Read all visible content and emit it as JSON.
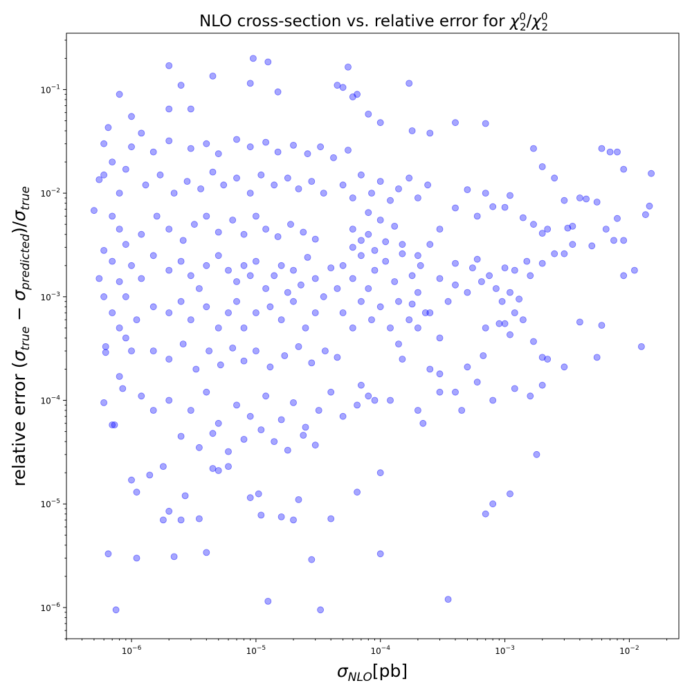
{
  "chart_data": {
    "type": "scatter",
    "title_prefix": "NLO cross-section vs. relative error for ",
    "title_math_base": "χ",
    "title_math_sub": "2",
    "title_math_sup": "0",
    "title_math_sep": "/",
    "xlabel_symbol": "σ",
    "xlabel_sub": "NLO",
    "xlabel_unit": "[pb]",
    "ylabel_prefix": "relative error (",
    "ylabel_sigma": "σ",
    "ylabel_sub_true": "true",
    "ylabel_minus": " − ",
    "ylabel_sub_pred": "predicted",
    "ylabel_close": ")/",
    "x_scale": "log",
    "y_scale": "log",
    "xlim": [
      3e-07,
      0.025
    ],
    "ylim": [
      5e-07,
      0.35
    ],
    "x_ticks": [
      {
        "base": "10",
        "exp": "−6",
        "value": 1e-06
      },
      {
        "base": "10",
        "exp": "−5",
        "value": 1e-05
      },
      {
        "base": "10",
        "exp": "−4",
        "value": 0.0001
      },
      {
        "base": "10",
        "exp": "−3",
        "value": 0.001
      },
      {
        "base": "10",
        "exp": "−2",
        "value": 0.01
      }
    ],
    "y_ticks": [
      {
        "base": "10",
        "exp": "−6",
        "value": 1e-06
      },
      {
        "base": "10",
        "exp": "−5",
        "value": 1e-05
      },
      {
        "base": "10",
        "exp": "−4",
        "value": 0.0001
      },
      {
        "base": "10",
        "exp": "−3",
        "value": 0.001
      },
      {
        "base": "10",
        "exp": "−2",
        "value": 0.01
      },
      {
        "base": "10",
        "exp": "−1",
        "value": 0.1
      }
    ],
    "grid": false,
    "legend": "none",
    "marker_color": "#0000ff",
    "marker_alpha": 0.35,
    "points": [
      [
        2e-06,
        0.17
      ],
      [
        9.5e-06,
        0.2
      ],
      [
        1.25e-05,
        0.185
      ],
      [
        5.5e-05,
        0.165
      ],
      [
        0.00017,
        0.115
      ],
      [
        4.5e-06,
        0.135
      ],
      [
        2.5e-06,
        0.11
      ],
      [
        9e-06,
        0.115
      ],
      [
        1.5e-05,
        0.095
      ],
      [
        4.5e-05,
        0.11
      ],
      [
        5e-05,
        0.105
      ],
      [
        6e-05,
        0.085
      ],
      [
        6.5e-05,
        0.09
      ],
      [
        8e-07,
        0.09
      ],
      [
        3e-06,
        0.065
      ],
      [
        2e-06,
        0.065
      ],
      [
        6.5e-07,
        0.043
      ],
      [
        1e-06,
        0.055
      ],
      [
        1.2e-06,
        0.038
      ],
      [
        8e-05,
        0.058
      ],
      [
        0.0001,
        0.048
      ],
      [
        0.00025,
        0.038
      ],
      [
        0.0004,
        0.048
      ],
      [
        0.0007,
        0.047
      ],
      [
        0.00018,
        0.04
      ],
      [
        0.0017,
        0.027
      ],
      [
        0.002,
        0.018
      ],
      [
        0.0025,
        0.014
      ],
      [
        0.003,
        0.0085
      ],
      [
        0.006,
        0.027
      ],
      [
        0.007,
        0.025
      ],
      [
        0.008,
        0.025
      ],
      [
        0.009,
        0.017
      ],
      [
        0.015,
        0.0155
      ],
      [
        0.0145,
        0.0075
      ],
      [
        0.0135,
        0.0062
      ],
      [
        0.0065,
        0.0045
      ],
      [
        0.008,
        0.0057
      ],
      [
        0.0075,
        0.0035
      ],
      [
        0.009,
        0.0035
      ],
      [
        0.011,
        0.0018
      ],
      [
        0.009,
        0.0016
      ],
      [
        0.0125,
        0.00033
      ],
      [
        0.0055,
        0.00026
      ],
      [
        0.006,
        0.00053
      ],
      [
        0.004,
        0.00057
      ],
      [
        0.003,
        0.00021
      ],
      [
        0.002,
        0.00026
      ],
      [
        0.0022,
        0.00025
      ],
      [
        0.002,
        0.00014
      ],
      [
        0.0017,
        0.00037
      ],
      [
        0.0018,
        3e-05
      ],
      [
        0.0016,
        0.00011
      ],
      [
        0.0012,
        0.00013
      ],
      [
        0.0011,
        0.00043
      ],
      [
        0.0008,
        0.0001
      ],
      [
        0.0011,
        1.25e-05
      ],
      [
        0.0007,
        8e-06
      ],
      [
        0.0008,
        1e-05
      ],
      [
        0.00035,
        1.2e-06
      ],
      [
        0.0001,
        3.3e-06
      ],
      [
        0.0001,
        2e-05
      ],
      [
        6.5e-05,
        1.3e-05
      ],
      [
        4e-05,
        7.2e-06
      ],
      [
        1.25e-05,
        1.15e-06
      ],
      [
        3.3e-05,
        9.5e-07
      ],
      [
        7.5e-07,
        9.5e-07
      ],
      [
        6.5e-07,
        3.3e-06
      ],
      [
        1.1e-06,
        3e-06
      ],
      [
        2.2e-06,
        3.1e-06
      ],
      [
        4e-06,
        3.4e-06
      ],
      [
        2.8e-05,
        2.9e-06
      ],
      [
        1.8e-06,
        7e-06
      ],
      [
        2.5e-06,
        7e-06
      ],
      [
        3.5e-06,
        7.2e-06
      ],
      [
        1.1e-05,
        7.8e-06
      ],
      [
        1.6e-05,
        7.5e-06
      ],
      [
        2e-05,
        7e-06
      ],
      [
        2.2e-05,
        1.1e-05
      ],
      [
        9e-06,
        1.15e-05
      ],
      [
        1.05e-05,
        1.25e-05
      ],
      [
        2e-06,
        8.5e-06
      ],
      [
        2.7e-06,
        1.2e-05
      ],
      [
        1e-06,
        1.7e-05
      ],
      [
        1.1e-06,
        1.3e-05
      ],
      [
        1.4e-06,
        1.9e-05
      ],
      [
        1.8e-06,
        2.3e-05
      ],
      [
        4.5e-06,
        2.2e-05
      ],
      [
        5e-06,
        2.1e-05
      ],
      [
        6e-06,
        2.3e-05
      ],
      [
        5e-07,
        0.0068
      ],
      [
        5.5e-07,
        0.0135
      ],
      [
        6e-07,
        0.03
      ],
      [
        6e-07,
        0.0028
      ],
      [
        5.5e-07,
        0.0015
      ],
      [
        6e-07,
        0.001
      ],
      [
        6.2e-07,
        0.00033
      ],
      [
        6.2e-07,
        0.00029
      ],
      [
        6e-07,
        9.5e-05
      ],
      [
        7e-07,
        5.8e-05
      ],
      [
        7.3e-07,
        5.8e-05
      ],
      [
        8e-07,
        0.00017
      ],
      [
        8.5e-07,
        0.00013
      ],
      [
        1.2e-06,
        0.00011
      ],
      [
        1.5e-06,
        8e-05
      ],
      [
        0.00025,
        0.0002
      ],
      [
        0.0003,
        0.00018
      ],
      [
        0.0004,
        0.00012
      ],
      [
        0.00045,
        8e-05
      ],
      [
        0.0005,
        0.00021
      ],
      [
        0.0006,
        0.00015
      ],
      [
        0.0002,
        8e-05
      ],
      [
        0.00022,
        6e-05
      ],
      [
        0.0003,
        0.00012
      ],
      [
        0.00012,
        0.0001
      ],
      [
        9e-05,
        0.0001
      ],
      [
        7e-05,
        0.00014
      ],
      [
        0.00015,
        0.00025
      ],
      [
        0.00014,
        0.00035
      ],
      [
        0.0003,
        0.0004
      ],
      [
        0.00067,
        0.00027
      ],
      [
        0.0007,
        0.0005
      ],
      [
        0.0009,
        0.00055
      ],
      [
        0.001,
        0.00055
      ],
      [
        0.0012,
        0.0007
      ],
      [
        0.0013,
        0.00095
      ],
      [
        0.0014,
        0.0006
      ],
      [
        0.0016,
        0.0016
      ],
      [
        0.0012,
        0.0018
      ],
      [
        0.0015,
        0.0022
      ],
      [
        0.001,
        0.0019
      ],
      [
        0.002,
        0.0021
      ],
      [
        0.0025,
        0.0026
      ],
      [
        0.003,
        0.0026
      ],
      [
        0.0035,
        0.0032
      ],
      [
        0.0032,
        0.0046
      ],
      [
        0.0035,
        0.0048
      ],
      [
        0.004,
        0.009
      ],
      [
        0.0045,
        0.0088
      ],
      [
        0.005,
        0.0031
      ],
      [
        0.0055,
        0.0082
      ],
      [
        0.0022,
        0.0045
      ],
      [
        0.002,
        0.0041
      ],
      [
        0.0014,
        0.0058
      ],
      [
        0.0017,
        0.005
      ],
      [
        0.0011,
        0.0095
      ],
      [
        0.001,
        0.0073
      ],
      [
        0.0008,
        0.0074
      ],
      [
        0.0007,
        0.01
      ],
      [
        0.0006,
        0.006
      ],
      [
        0.0005,
        0.0108
      ],
      [
        0.0004,
        0.0072
      ],
      [
        0.0003,
        0.0045
      ],
      [
        0.00025,
        0.0032
      ],
      [
        0.0002,
        0.0025
      ],
      [
        0.00015,
        0.0032
      ],
      [
        0.00013,
        0.0048
      ],
      [
        0.0001,
        0.0055
      ],
      [
        8e-05,
        0.0065
      ],
      [
        6e-05,
        0.0045
      ],
      [
        0.00025,
        0.0007
      ],
      [
        0.0002,
        0.0005
      ],
      [
        0.00018,
        0.00085
      ],
      [
        0.00035,
        0.0009
      ],
      [
        0.0004,
        0.0013
      ],
      [
        0.0005,
        0.0011
      ],
      [
        0.00055,
        0.0019
      ],
      [
        0.0006,
        0.0023
      ],
      [
        0.00065,
        0.0014
      ],
      [
        0.00075,
        0.0016
      ],
      [
        0.00085,
        0.0012
      ],
      [
        0.00095,
        0.0009
      ],
      [
        0.0011,
        0.0011
      ],
      [
        0.0004,
        0.0021
      ],
      [
        0.0003,
        0.0015
      ],
      [
        1e-06,
        0.002
      ],
      [
        1.2e-06,
        0.0015
      ],
      [
        1.5e-06,
        0.0025
      ],
      [
        2e-06,
        0.0018
      ],
      [
        2.5e-06,
        0.0022
      ],
      [
        3e-06,
        0.0016
      ],
      [
        3.5e-06,
        0.0012
      ],
      [
        4e-06,
        0.002
      ],
      [
        5e-06,
        0.0025
      ],
      [
        6e-06,
        0.0018
      ],
      [
        7e-06,
        0.0014
      ],
      [
        8e-06,
        0.002
      ],
      [
        9e-06,
        0.0016
      ],
      [
        1e-05,
        0.0022
      ],
      [
        1.2e-05,
        0.0012
      ],
      [
        1.4e-05,
        0.0016
      ],
      [
        1.6e-05,
        0.002
      ],
      [
        1.8e-05,
        0.0011
      ],
      [
        2e-05,
        0.0018
      ],
      [
        2.3e-05,
        0.0013
      ],
      [
        2.6e-05,
        0.0024
      ],
      [
        3e-05,
        0.0015
      ],
      [
        3.5e-05,
        0.001
      ],
      [
        4e-05,
        0.0019
      ],
      [
        4.5e-05,
        0.0012
      ],
      [
        1.5e-06,
        0.0008
      ],
      [
        2e-06,
        0.0007
      ],
      [
        2.5e-06,
        0.0009
      ],
      [
        3e-06,
        0.0006
      ],
      [
        4e-06,
        0.0008
      ],
      [
        5e-06,
        0.0005
      ],
      [
        6e-06,
        0.0007
      ],
      [
        7e-06,
        0.0009
      ],
      [
        8e-06,
        0.0005
      ],
      [
        1e-05,
        0.0007
      ],
      [
        1.3e-05,
        0.0008
      ],
      [
        1.6e-05,
        0.0006
      ],
      [
        2e-05,
        0.0009
      ],
      [
        2.5e-05,
        0.0005
      ],
      [
        3e-05,
        0.0007
      ],
      [
        1.2e-06,
        0.004
      ],
      [
        1.6e-06,
        0.006
      ],
      [
        2e-06,
        0.0045
      ],
      [
        2.6e-06,
        0.0035
      ],
      [
        3.2e-06,
        0.005
      ],
      [
        4e-06,
        0.006
      ],
      [
        5e-06,
        0.0042
      ],
      [
        6.5e-06,
        0.0055
      ],
      [
        8e-06,
        0.004
      ],
      [
        1e-05,
        0.006
      ],
      [
        1.2e-05,
        0.0045
      ],
      [
        1.5e-05,
        0.0038
      ],
      [
        1.9e-05,
        0.005
      ],
      [
        2.4e-05,
        0.0042
      ],
      [
        3e-05,
        0.0036
      ],
      [
        1.3e-06,
        0.012
      ],
      [
        1.7e-06,
        0.015
      ],
      [
        2.2e-06,
        0.01
      ],
      [
        2.8e-06,
        0.013
      ],
      [
        3.6e-06,
        0.011
      ],
      [
        4.5e-06,
        0.016
      ],
      [
        5.5e-06,
        0.012
      ],
      [
        7e-06,
        0.014
      ],
      [
        9e-06,
        0.01
      ],
      [
        1.1e-05,
        0.015
      ],
      [
        1.4e-05,
        0.012
      ],
      [
        1.8e-05,
        0.014
      ],
      [
        2.2e-05,
        0.011
      ],
      [
        2.8e-05,
        0.013
      ],
      [
        3.5e-05,
        0.01
      ],
      [
        1e-06,
        0.028
      ],
      [
        1.5e-06,
        0.025
      ],
      [
        2e-06,
        0.032
      ],
      [
        3e-06,
        0.027
      ],
      [
        4e-06,
        0.03
      ],
      [
        5e-06,
        0.024
      ],
      [
        7e-06,
        0.033
      ],
      [
        9e-06,
        0.028
      ],
      [
        1.2e-05,
        0.031
      ],
      [
        1.5e-05,
        0.025
      ],
      [
        2e-05,
        0.029
      ],
      [
        2.6e-05,
        0.024
      ],
      [
        3.3e-05,
        0.028
      ],
      [
        4.2e-05,
        0.022
      ],
      [
        5.5e-05,
        0.026
      ],
      [
        1.5e-06,
        0.0003
      ],
      [
        2e-06,
        0.00025
      ],
      [
        2.6e-06,
        0.00035
      ],
      [
        3.3e-06,
        0.0002
      ],
      [
        4.2e-06,
        0.0003
      ],
      [
        5.2e-06,
        0.00022
      ],
      [
        6.5e-06,
        0.00032
      ],
      [
        8e-06,
        0.00024
      ],
      [
        1e-05,
        0.0003
      ],
      [
        1.3e-05,
        0.00021
      ],
      [
        1.7e-05,
        0.00027
      ],
      [
        2.2e-05,
        0.00033
      ],
      [
        2.8e-05,
        0.00023
      ],
      [
        3.6e-05,
        0.0003
      ],
      [
        4.5e-05,
        0.00026
      ],
      [
        2e-06,
        0.0001
      ],
      [
        3e-06,
        8e-05
      ],
      [
        4e-06,
        0.00012
      ],
      [
        5e-06,
        6e-05
      ],
      [
        7e-06,
        9e-05
      ],
      [
        9e-06,
        7e-05
      ],
      [
        1.2e-05,
        0.00011
      ],
      [
        1.6e-05,
        6.5e-05
      ],
      [
        2e-05,
        9.5e-05
      ],
      [
        2.5e-05,
        5.5e-05
      ],
      [
        3.2e-05,
        8e-05
      ],
      [
        4e-05,
        0.00012
      ],
      [
        5e-05,
        7e-05
      ],
      [
        6.5e-05,
        9e-05
      ],
      [
        8e-05,
        0.00011
      ],
      [
        2.5e-06,
        4.5e-05
      ],
      [
        3.5e-06,
        3.5e-05
      ],
      [
        4.5e-06,
        4.8e-05
      ],
      [
        6e-06,
        3.2e-05
      ],
      [
        8e-06,
        4.2e-05
      ],
      [
        1.1e-05,
        5.2e-05
      ],
      [
        1.4e-05,
        4e-05
      ],
      [
        1.8e-05,
        3.3e-05
      ],
      [
        2.4e-05,
        4.6e-05
      ],
      [
        3e-05,
        3.7e-05
      ],
      [
        5e-05,
        0.002
      ],
      [
        6e-05,
        0.0015
      ],
      [
        7e-05,
        0.0025
      ],
      [
        8e-05,
        0.0012
      ],
      [
        9e-05,
        0.0018
      ],
      [
        0.00011,
        0.0022
      ],
      [
        0.00013,
        0.0014
      ],
      [
        0.00015,
        0.0026
      ],
      [
        0.00018,
        0.0016
      ],
      [
        0.00021,
        0.002
      ],
      [
        5e-05,
        0.0007
      ],
      [
        6e-05,
        0.0005
      ],
      [
        7e-05,
        0.0009
      ],
      [
        8.5e-05,
        0.0006
      ],
      [
        0.0001,
        0.0008
      ],
      [
        0.00012,
        0.0005
      ],
      [
        0.00014,
        0.0009
      ],
      [
        0.00017,
        0.0006
      ],
      [
        0.0002,
        0.0011
      ],
      [
        0.00023,
        0.0007
      ],
      [
        5e-05,
        0.012
      ],
      [
        6e-05,
        0.009
      ],
      [
        7e-05,
        0.015
      ],
      [
        8.5e-05,
        0.01
      ],
      [
        0.0001,
        0.013
      ],
      [
        0.00012,
        0.0085
      ],
      [
        0.00014,
        0.011
      ],
      [
        0.00017,
        0.014
      ],
      [
        0.0002,
        0.009
      ],
      [
        0.00024,
        0.012
      ],
      [
        6e-05,
        0.003
      ],
      [
        7e-05,
        0.0035
      ],
      [
        8e-05,
        0.004
      ],
      [
        9e-05,
        0.0028
      ],
      [
        0.00011,
        0.0034
      ],
      [
        6e-07,
        0.015
      ],
      [
        7e-07,
        0.02
      ],
      [
        8e-07,
        0.01
      ],
      [
        9e-07,
        0.017
      ],
      [
        7e-07,
        0.006
      ],
      [
        8e-07,
        0.0045
      ],
      [
        9e-07,
        0.0032
      ],
      [
        7e-07,
        0.0022
      ],
      [
        8e-07,
        0.0014
      ],
      [
        9e-07,
        0.001
      ],
      [
        7e-07,
        0.0007
      ],
      [
        8e-07,
        0.0005
      ],
      [
        9e-07,
        0.0004
      ],
      [
        1e-06,
        0.0003
      ],
      [
        1.1e-06,
        0.0006
      ]
    ]
  }
}
